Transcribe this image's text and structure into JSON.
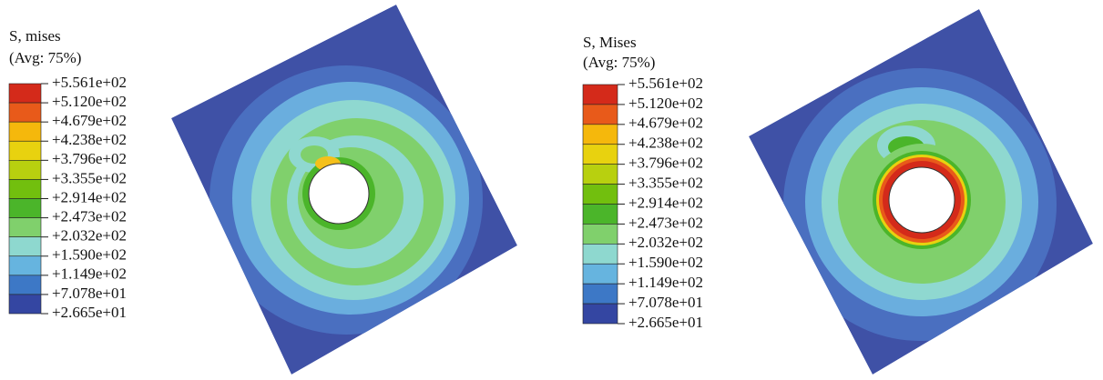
{
  "panels": [
    {
      "title": "S, mises",
      "subtitle": "(Avg: 75%)",
      "labels": [
        "+5.561e+02",
        "+5.120e+02",
        "+4.679e+02",
        "+4.238e+02",
        "+3.796e+02",
        "+3.355e+02",
        "+2.914e+02",
        "+2.473e+02",
        "+2.032e+02",
        "+1.590e+02",
        "+1.149e+02",
        "+7.078e+01",
        "+2.665e+01"
      ]
    },
    {
      "title": "S, Mises",
      "subtitle": "(Avg: 75%)",
      "labels": [
        "+5.561e+02",
        "+5.120e+02",
        "+4.679e+02",
        "+4.238e+02",
        "+3.796e+02",
        "+3.355e+02",
        "+2.914e+02",
        "+2.473e+02",
        "+2.032e+02",
        "+1.590e+02",
        "+1.149e+02",
        "+7.078e+01",
        "+2.665e+01"
      ]
    }
  ]
}
